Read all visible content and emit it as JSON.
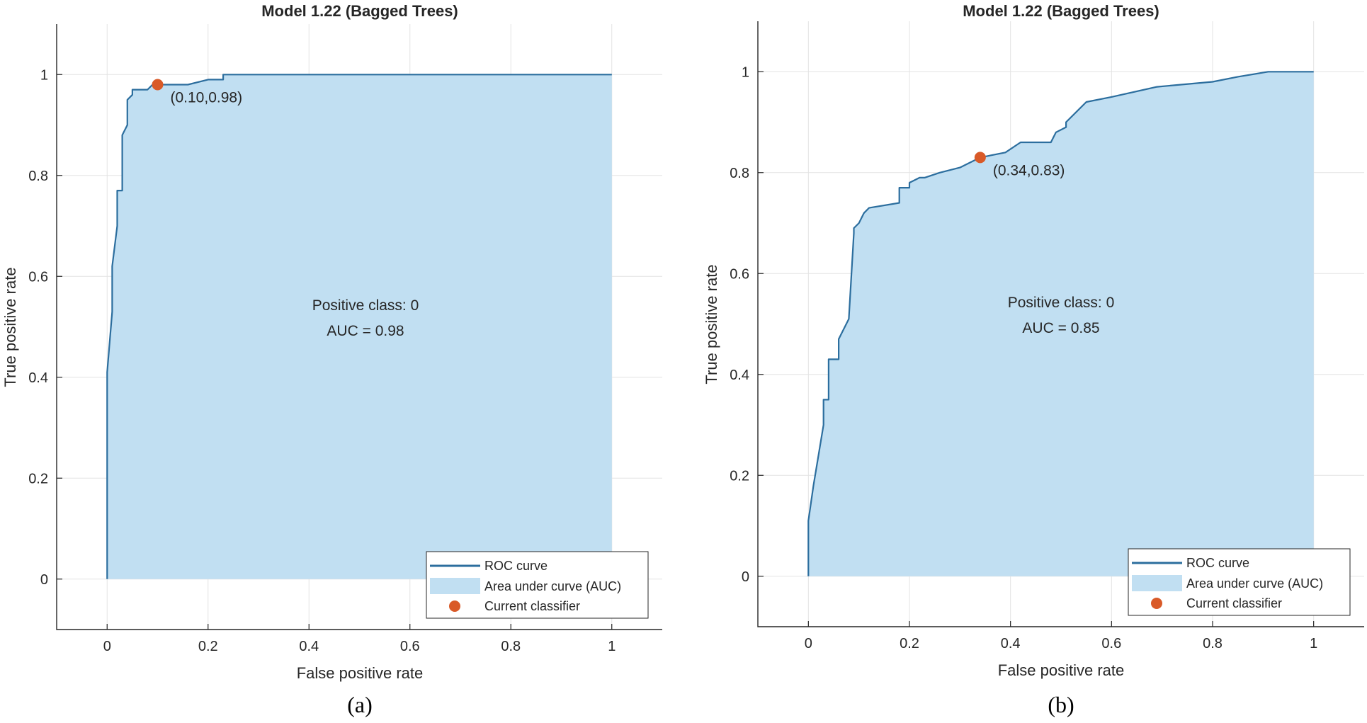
{
  "chart_data": [
    {
      "type": "line",
      "panel": "(a)",
      "title": "Model 1.22 (Bagged Trees)",
      "xlabel": "False positive rate",
      "ylabel": "True positive rate",
      "xlim": [
        -0.1,
        1.1
      ],
      "ylim": [
        -0.1,
        1.1
      ],
      "xticks": [
        0,
        0.2,
        0.4,
        0.6,
        0.8,
        1
      ],
      "xtick_labels": [
        "0",
        "0.2",
        "0.4",
        "0.6",
        "0.8",
        "1"
      ],
      "yticks": [
        0,
        0.2,
        0.4,
        0.6,
        0.8,
        1
      ],
      "ytick_labels": [
        "0",
        "0.2",
        "0.4",
        "0.6",
        "0.8",
        "1"
      ],
      "grid": true,
      "series": [
        {
          "name": "ROC curve",
          "x": [
            0,
            0,
            0.01,
            0.01,
            0.02,
            0.02,
            0.03,
            0.03,
            0.04,
            0.04,
            0.05,
            0.05,
            0.06,
            0.07,
            0.08,
            0.09,
            0.1,
            0.12,
            0.15,
            0.16,
            0.2,
            0.23,
            0.23,
            0.3,
            0.4,
            0.5,
            0.6,
            0.7,
            0.8,
            0.9,
            1
          ],
          "y": [
            0,
            0.41,
            0.53,
            0.62,
            0.7,
            0.77,
            0.77,
            0.88,
            0.9,
            0.95,
            0.96,
            0.97,
            0.97,
            0.97,
            0.97,
            0.98,
            0.98,
            0.98,
            0.98,
            0.98,
            0.99,
            0.99,
            1.0,
            1.0,
            1.0,
            1.0,
            1.0,
            1.0,
            1.0,
            1.0,
            1.0
          ]
        }
      ],
      "current_classifier": {
        "x": 0.1,
        "y": 0.98,
        "label": "(0.10,0.98)"
      },
      "annotations": [
        "Positive class: 0",
        "AUC = 0.98"
      ],
      "legend": [
        "ROC curve",
        "Area under curve (AUC)",
        "Current classifier"
      ],
      "legend_position": "bottom-right",
      "colors": {
        "line": "#2c6e9e",
        "fill": "#c1dff2",
        "marker": "#d95a28",
        "grid": "#e3e3e3",
        "axis": "#262626"
      }
    },
    {
      "type": "line",
      "panel": "(b)",
      "title": "Model 1.22 (Bagged Trees)",
      "xlabel": "False positive rate",
      "ylabel": "True positive rate",
      "xlim": [
        -0.1,
        1.1
      ],
      "ylim": [
        -0.1,
        1.1
      ],
      "xticks": [
        0,
        0.2,
        0.4,
        0.6,
        0.8,
        1
      ],
      "xtick_labels": [
        "0",
        "0.2",
        "0.4",
        "0.6",
        "0.8",
        "1"
      ],
      "yticks": [
        0,
        0.2,
        0.4,
        0.6,
        0.8,
        1
      ],
      "ytick_labels": [
        "0",
        "0.2",
        "0.4",
        "0.6",
        "0.8",
        "1"
      ],
      "grid": true,
      "series": [
        {
          "name": "ROC curve",
          "x": [
            0,
            0,
            0.01,
            0.02,
            0.03,
            0.03,
            0.04,
            0.04,
            0.05,
            0.06,
            0.06,
            0.08,
            0.09,
            0.09,
            0.1,
            0.11,
            0.12,
            0.18,
            0.18,
            0.2,
            0.2,
            0.22,
            0.23,
            0.26,
            0.3,
            0.34,
            0.39,
            0.42,
            0.47,
            0.48,
            0.49,
            0.51,
            0.51,
            0.55,
            0.6,
            0.69,
            0.8,
            0.85,
            0.91,
            1
          ],
          "y": [
            0,
            0.11,
            0.18,
            0.24,
            0.3,
            0.35,
            0.35,
            0.43,
            0.43,
            0.43,
            0.47,
            0.51,
            0.68,
            0.69,
            0.7,
            0.72,
            0.73,
            0.74,
            0.77,
            0.77,
            0.78,
            0.79,
            0.79,
            0.8,
            0.81,
            0.83,
            0.84,
            0.86,
            0.86,
            0.86,
            0.88,
            0.89,
            0.9,
            0.94,
            0.95,
            0.97,
            0.98,
            0.99,
            1.0,
            1.0
          ]
        }
      ],
      "current_classifier": {
        "x": 0.34,
        "y": 0.83,
        "label": "(0.34,0.83)"
      },
      "annotations": [
        "Positive class: 0",
        "AUC = 0.85"
      ],
      "legend": [
        "ROC curve",
        "Area under curve (AUC)",
        "Current classifier"
      ],
      "legend_position": "bottom-right",
      "colors": {
        "line": "#2c6e9e",
        "fill": "#c1dff2",
        "marker": "#d95a28",
        "grid": "#e3e3e3",
        "axis": "#262626"
      }
    }
  ]
}
